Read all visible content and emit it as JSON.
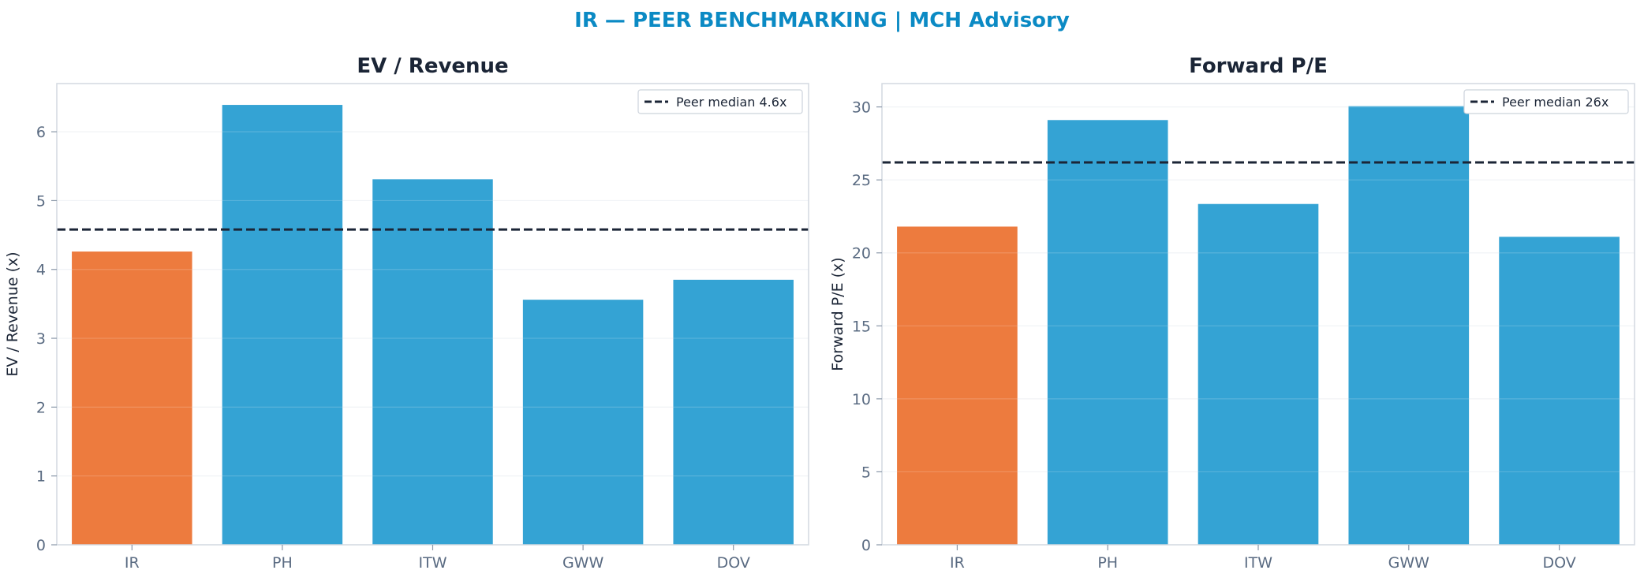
{
  "suptitle": "IR — PEER BENCHMARKING | MCH Advisory",
  "colors": {
    "title": "#0B8AC4",
    "highlight": "#ED7B3E",
    "peer": "#34A3D4",
    "median_line": "#1B2536",
    "axis_text": "#5A6B82",
    "label_text": "#1B2536"
  },
  "chart_data": [
    {
      "type": "bar",
      "title": "EV / Revenue",
      "xlabel": "",
      "ylabel": "EV / Revenue (x)",
      "categories": [
        "IR",
        "PH",
        "ITW",
        "GWW",
        "DOV"
      ],
      "values": [
        4.26,
        6.39,
        5.31,
        3.56,
        3.85
      ],
      "highlight": "IR",
      "ylim": [
        0,
        6.7
      ],
      "yticks": [
        0,
        1,
        2,
        3,
        4,
        5,
        6
      ],
      "reference_line": {
        "value": 4.58,
        "label": "Peer median 4.6x"
      },
      "legend_position": "top-right",
      "grid": "horizontal"
    },
    {
      "type": "bar",
      "title": "Forward P/E",
      "xlabel": "",
      "ylabel": "Forward P/E (x)",
      "categories": [
        "IR",
        "PH",
        "ITW",
        "GWW",
        "DOV"
      ],
      "values": [
        21.8,
        29.1,
        23.35,
        30.05,
        21.1
      ],
      "highlight": "IR",
      "ylim": [
        0,
        31.6
      ],
      "yticks": [
        0,
        5,
        10,
        15,
        20,
        25,
        30
      ],
      "reference_line": {
        "value": 26.2,
        "label": "Peer median 26x"
      },
      "legend_position": "top-right",
      "grid": "horizontal"
    }
  ]
}
